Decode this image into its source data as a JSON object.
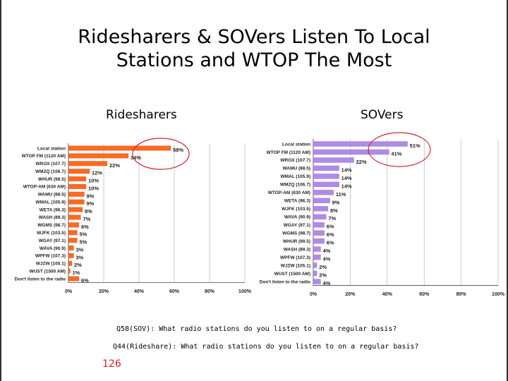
{
  "slide": {
    "title_line1": "Ridesharers & SOVers Listen To Local",
    "title_line2": "Stations and WTOP The Most",
    "note_sov": "Q58(SOV): What radio stations do you listen to on a regular basis?",
    "note_rideshare": "Q44(Rideshare): What radio stations do you listen to on a regular basis?",
    "page_number": "126"
  },
  "colors": {
    "ridesharers": "#ff6a1f",
    "sovers": "#b08ae8",
    "highlight_circle": "#cc2233",
    "gridline": "#aaaaaa"
  },
  "chart_data": [
    {
      "type": "bar",
      "orientation": "horizontal",
      "title": "Ridesharers",
      "categories": [
        "Local station",
        "WTOP FM (1120 AM)",
        "WROX (107.7)",
        "WMZQ (106.7)",
        "WHUR (99.5)",
        "WTOP-AM (630 AM)",
        "WAMU (88.5)",
        "WMAL (105.9)",
        "WETA (96.3)",
        "WASH (89.3)",
        "WGMS (98.7)",
        "WJFK (103.5)",
        "WGAY (97.1)",
        "WAVA (90.9)",
        "WPFW (107.3)",
        "WJZW (105.1)",
        "WUST (1500 AM)",
        "Don't listen to the radio"
      ],
      "values": [
        58,
        34,
        22,
        12,
        10,
        10,
        9,
        9,
        8,
        7,
        6,
        5,
        5,
        3,
        3,
        2,
        1,
        6
      ],
      "value_labels": [
        "58%",
        "34%",
        "22%",
        "12%",
        "10%",
        "10%",
        "9%",
        "9%",
        "8%",
        "7%",
        "6%",
        "5%",
        "5%",
        "3%",
        "3%",
        "2%",
        "1%",
        "6%"
      ],
      "xlim": [
        0,
        100
      ],
      "x_ticks": [
        "0%",
        "20%",
        "40%",
        "60%",
        "80%",
        "100%"
      ],
      "grid": true,
      "highlighted_categories": [
        "Local station",
        "WTOP FM (1120 AM)"
      ]
    },
    {
      "type": "bar",
      "orientation": "horizontal",
      "title": "SOVers",
      "categories": [
        "Local station",
        "WTOP FM (1120 AM)",
        "WROX (107.7)",
        "WAMU (88.5)",
        "WMAL (105.9)",
        "WMZQ (106.7)",
        "WTOP-AM (630 AM)",
        "WETA (96.3)",
        "WJFK (103.5)",
        "WAVA (90.9)",
        "WGAY (97.1)",
        "WGMS (98.7)",
        "WHUR (99.5)",
        "WASH (89.3)",
        "WPFW (107.3)",
        "WJZW (105.1)",
        "WUST (1500 AM)",
        "Don't listen to the radio"
      ],
      "values": [
        51,
        41,
        22,
        14,
        14,
        14,
        11,
        9,
        8,
        7,
        6,
        6,
        6,
        4,
        4,
        2,
        2,
        4
      ],
      "value_labels": [
        "51%",
        "41%",
        "22%",
        "14%",
        "14%",
        "14%",
        "11%",
        "9%",
        "8%",
        "7%",
        "6%",
        "6%",
        "6%",
        "4%",
        "4%",
        "2%",
        "2%",
        "4%"
      ],
      "xlim": [
        0,
        100
      ],
      "x_ticks": [
        "0%",
        "20%",
        "40%",
        "60%",
        "80%",
        "100%"
      ],
      "grid": true,
      "highlighted_categories": [
        "Local station",
        "WTOP FM (1120 AM)"
      ]
    }
  ]
}
